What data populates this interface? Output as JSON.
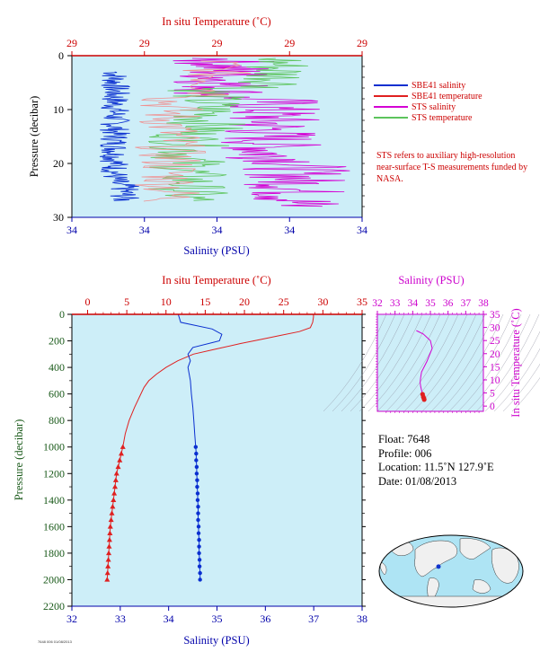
{
  "colors": {
    "plot_bg": "#cdeef8",
    "axis": "#000000",
    "temp_axis": "#cc0000",
    "sal_axis": "#0000aa",
    "sbe_sal": "#0a2fd0",
    "sbe_temp": "#e02020",
    "sts_sal": "#d400d4",
    "sts_temp": "#5cc45c",
    "sts_temp_light": "#f09090",
    "ts_axis": "#cc00cc",
    "pressure_label": "#1a5a1a"
  },
  "chart_data": [
    {
      "type": "line",
      "name": "near-surface",
      "top_axis_label": "In situ Temperature (˚C)",
      "top_ticks": [
        "29",
        "29",
        "29",
        "29",
        "29"
      ],
      "bottom_axis_label": "Salinity (PSU)",
      "bottom_ticks": [
        "34",
        "34",
        "34",
        "34",
        "34"
      ],
      "ylabel": "Pressure (decibar)",
      "y_ticks": [
        0,
        10,
        20,
        30
      ],
      "ylim": [
        30,
        0
      ],
      "series_note": "STS high-resolution near-surface salinity and temperature and SBE41 salinity and temperature profiles (unresolved tick precision)"
    },
    {
      "type": "line",
      "name": "full-profile",
      "top_axis_label": "In situ Temperature (˚C)",
      "top_ticks": [
        0,
        5,
        10,
        15,
        20,
        25,
        30,
        35
      ],
      "xlim_temp": [
        -2,
        35
      ],
      "bottom_axis_label": "Salinity (PSU)",
      "bottom_ticks": [
        32,
        33,
        34,
        35,
        36,
        37,
        38
      ],
      "xlim_sal": [
        32,
        38
      ],
      "ylabel": "Pressure (decibar)",
      "y_ticks": [
        0,
        200,
        400,
        600,
        800,
        1000,
        1200,
        1400,
        1600,
        1800,
        2000,
        2200
      ],
      "ylim": [
        2200,
        0
      ],
      "temperature": {
        "pressure": [
          0,
          20,
          60,
          100,
          130,
          160,
          190,
          220,
          260,
          300,
          350,
          400,
          450,
          500,
          550,
          600,
          700,
          800,
          900,
          1000,
          1050,
          1100,
          1150,
          1200,
          1250,
          1300,
          1350,
          1400,
          1450,
          1500,
          1550,
          1600,
          1650,
          1700,
          1750,
          1800,
          1850,
          1900,
          1950,
          2000
        ],
        "values": [
          28.8,
          28.8,
          28.7,
          28.4,
          27.0,
          24.5,
          22.0,
          19.5,
          16.5,
          13.5,
          11.5,
          10.0,
          8.8,
          7.8,
          7.2,
          6.8,
          6.0,
          5.3,
          4.8,
          4.5,
          4.3,
          4.1,
          3.9,
          3.7,
          3.6,
          3.5,
          3.4,
          3.3,
          3.2,
          3.1,
          3.0,
          2.9,
          2.85,
          2.8,
          2.75,
          2.7,
          2.65,
          2.6,
          2.55,
          2.5
        ],
        "markers_from": 1000
      },
      "salinity": {
        "pressure": [
          0,
          60,
          80,
          110,
          150,
          200,
          250,
          300,
          350,
          400,
          500,
          600,
          700,
          800,
          900,
          1000,
          1050,
          1100,
          1150,
          1200,
          1250,
          1300,
          1350,
          1400,
          1450,
          1500,
          1550,
          1600,
          1650,
          1700,
          1750,
          1800,
          1850,
          1900,
          1950,
          2000
        ],
        "values": [
          34.2,
          34.25,
          34.5,
          34.9,
          35.1,
          35.05,
          34.5,
          34.4,
          34.45,
          34.4,
          34.45,
          34.47,
          34.5,
          34.52,
          34.54,
          34.56,
          34.57,
          34.57,
          34.58,
          34.58,
          34.59,
          34.59,
          34.6,
          34.6,
          34.61,
          34.61,
          34.61,
          34.62,
          34.62,
          34.63,
          34.63,
          34.63,
          34.64,
          34.64,
          34.65,
          34.65
        ],
        "markers_from": 1000
      }
    },
    {
      "type": "scatter",
      "name": "t-s-diagram",
      "top_axis_label": "Salinity (PSU)",
      "x_ticks": [
        32,
        33,
        34,
        35,
        36,
        37,
        38
      ],
      "xlim": [
        32,
        38
      ],
      "right_axis_label": "In situ Temperature (˚C)",
      "y_ticks": [
        0,
        5,
        10,
        15,
        20,
        25,
        30,
        35
      ],
      "ylim": [
        -2,
        35
      ],
      "ts_curve": {
        "salinity": [
          34.2,
          34.3,
          34.6,
          35.0,
          35.1,
          34.8,
          34.5,
          34.45,
          34.42,
          34.45,
          34.5,
          34.56,
          34.6,
          34.63,
          34.65
        ],
        "temperature": [
          28.8,
          28.5,
          27.5,
          25.0,
          22.0,
          17.0,
          13.0,
          11.0,
          9.0,
          7.5,
          6.0,
          4.5,
          3.5,
          3.0,
          2.5
        ]
      },
      "markers_below_temperature": 4.6
    }
  ],
  "legend": {
    "items": [
      {
        "label": "SBE41 salinity",
        "color": "#0a2fd0"
      },
      {
        "label": "SBE41 temperature",
        "color": "#e02020"
      },
      {
        "label": "STS salinity",
        "color": "#d400d4"
      },
      {
        "label": "STS temperature",
        "color": "#5cc45c"
      }
    ],
    "note": "STS refers to auxiliary high-resolution near-surface T-S measurements funded by NASA."
  },
  "float_info": {
    "float": "Float:  7648",
    "profile": "Profile:  006",
    "location": "Location:  11.5˚N  127.9˚E",
    "date": "Date:  01/08/2013"
  },
  "map": {
    "marker_lon": 127.9,
    "marker_lat": 11.5
  },
  "credit": "7648 006 01/08/2013"
}
